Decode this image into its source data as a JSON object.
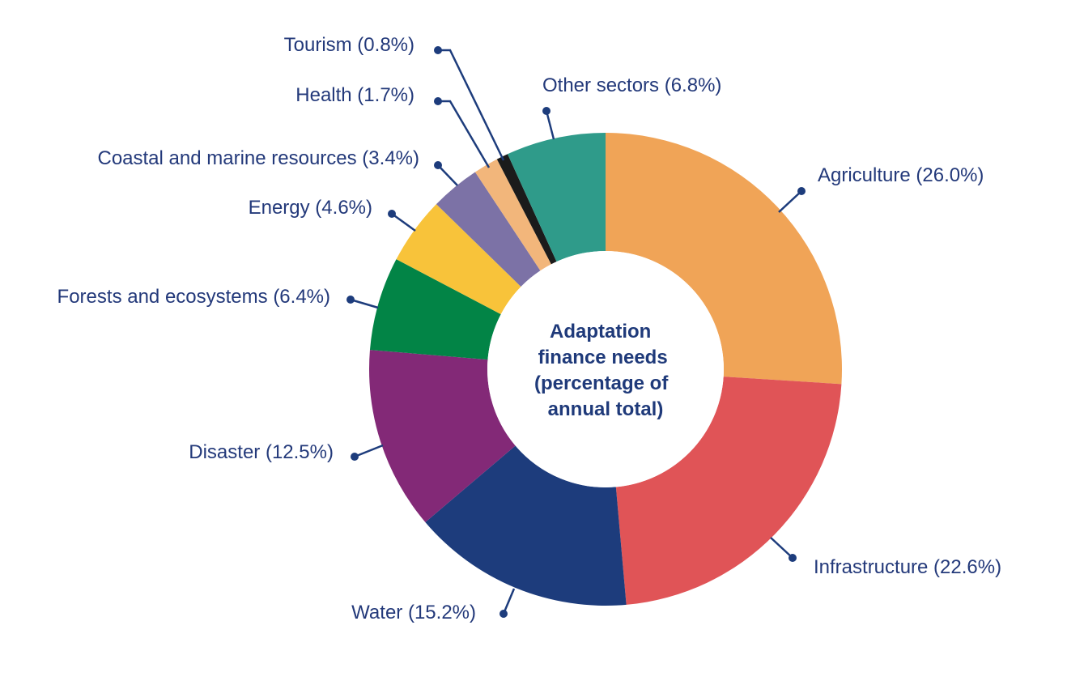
{
  "chart_data": {
    "type": "pie",
    "donut": true,
    "center_label": [
      "Adaptation",
      "finance needs",
      "(percentage of",
      "annual total)"
    ],
    "unit": "%",
    "slices": [
      {
        "name": "Agriculture",
        "value": 26.0,
        "label": "Agriculture (26.0%)",
        "color": "#f0a457"
      },
      {
        "name": "Infrastructure",
        "value": 22.6,
        "label": "Infrastructure (22.6%)",
        "color": "#e05457"
      },
      {
        "name": "Water",
        "value": 15.2,
        "label": "Water (15.2%)",
        "color": "#1d3c7c"
      },
      {
        "name": "Disaster",
        "value": 12.5,
        "label": "Disaster (12.5%)",
        "color": "#832977"
      },
      {
        "name": "Forests and ecosystems",
        "value": 6.4,
        "label": "Forests and ecosystems (6.4%)",
        "color": "#028446"
      },
      {
        "name": "Energy",
        "value": 4.6,
        "label": "Energy (4.6%)",
        "color": "#f8c33a"
      },
      {
        "name": "Coastal and marine resources",
        "value": 3.4,
        "label": "Coastal and marine resources (3.4%)",
        "color": "#7c72a6"
      },
      {
        "name": "Health",
        "value": 1.7,
        "label": "Health (1.7%)",
        "color": "#f2b67b"
      },
      {
        "name": "Tourism",
        "value": 0.8,
        "label": "Tourism (0.8%)",
        "color": "#1b1b1b"
      },
      {
        "name": "Other sectors",
        "value": 6.8,
        "label": "Other sectors (6.8%)",
        "color": "#2f9b8a"
      }
    ],
    "leader_color": "#1d3c7c"
  }
}
